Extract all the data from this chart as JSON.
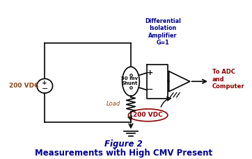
{
  "title_line1": "Figure 2",
  "title_line2": "Measurements with High CMV Present",
  "title_color": "#00008B",
  "title_fontsize": 8.5,
  "bg_color": "#ffffff",
  "circuit_color": "#000000",
  "label_200vdc_left": "200 VDC",
  "label_50mv": "50 mv\nShunt",
  "label_load": "Load",
  "label_200vdc_ellipse": "200 VDC",
  "label_diff_amp": "Differential\nIsolation\nAmplifier\nG=1",
  "label_to_adc": "To ADC\nand\nComputer",
  "label_plus": "+",
  "label_minus": "−",
  "diff_amp_label_color": "#00008B",
  "to_adc_color": "#8B0000",
  "ellipse_label_color": "#8B0000",
  "left_label_color": "#8B4513",
  "load_label_color": "#8B4513",
  "fig_width": 3.62,
  "fig_height": 2.29,
  "dpi": 100
}
